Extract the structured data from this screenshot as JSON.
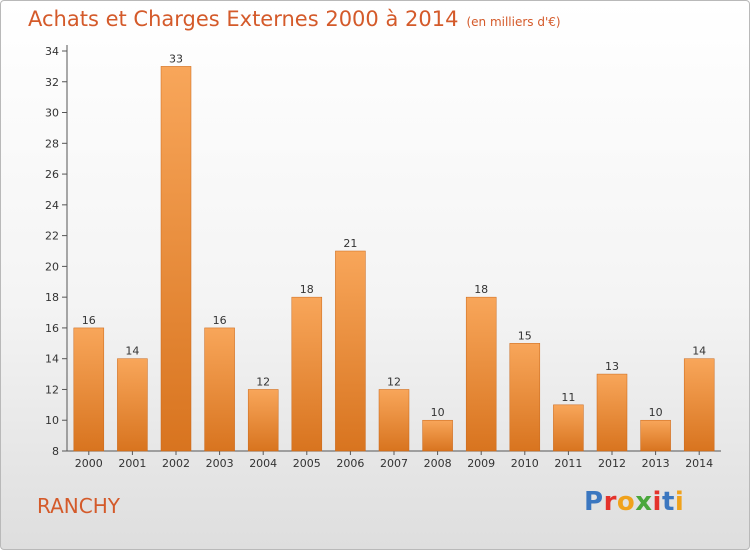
{
  "header": {
    "title": "Achats et Charges Externes 2000 à 2014",
    "unit": "(en milliers d'€)"
  },
  "footer": {
    "town": "RANCHY",
    "brand": "Proxiti"
  },
  "colors": {
    "title": "#d45a2a",
    "bar_top": "#f8a65a",
    "bar_bottom": "#d8741f",
    "brand": [
      "#3b77c0",
      "#e4322b",
      "#f0a21c",
      "#4aa73c",
      "#e4322b",
      "#3b77c0",
      "#f0a21c"
    ]
  },
  "chart_data": {
    "type": "bar",
    "categories": [
      "2000",
      "2001",
      "2002",
      "2003",
      "2004",
      "2005",
      "2006",
      "2007",
      "2008",
      "2009",
      "2010",
      "2011",
      "2012",
      "2013",
      "2014"
    ],
    "values": [
      16,
      14,
      33,
      16,
      12,
      18,
      21,
      12,
      10,
      18,
      15,
      11,
      13,
      10,
      14
    ],
    "ylim": [
      8,
      34
    ],
    "yticks": [
      8,
      10,
      12,
      14,
      16,
      18,
      20,
      22,
      24,
      26,
      28,
      30,
      32,
      34
    ],
    "grid": false,
    "data_labels": true
  }
}
